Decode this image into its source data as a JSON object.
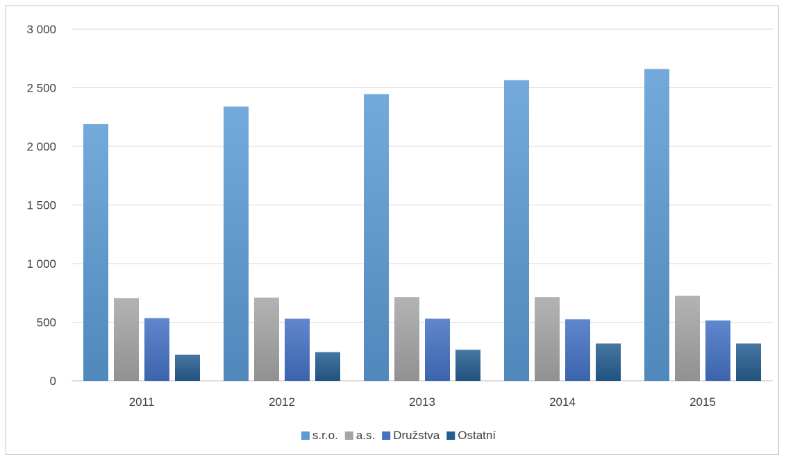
{
  "chart_data": {
    "type": "bar",
    "categories": [
      "2011",
      "2012",
      "2013",
      "2014",
      "2015"
    ],
    "series": [
      {
        "name": "s.r.o.",
        "values": [
          2190,
          2340,
          2445,
          2565,
          2660
        ],
        "color": "#5b9bd5"
      },
      {
        "name": "a.s.",
        "values": [
          705,
          710,
          715,
          715,
          725
        ],
        "color": "#a5a5a5"
      },
      {
        "name": "Družstva",
        "values": [
          535,
          530,
          530,
          525,
          515
        ],
        "color": "#4472c4"
      },
      {
        "name": "Ostatní",
        "values": [
          222,
          245,
          265,
          318,
          318
        ],
        "color": "#255e91"
      }
    ],
    "yticks": [
      "0",
      "500",
      "1 000",
      "1 500",
      "2 000",
      "2 500",
      "3 000"
    ],
    "ylim": [
      0,
      3000
    ],
    "grid": true,
    "legend": "bottom"
  }
}
